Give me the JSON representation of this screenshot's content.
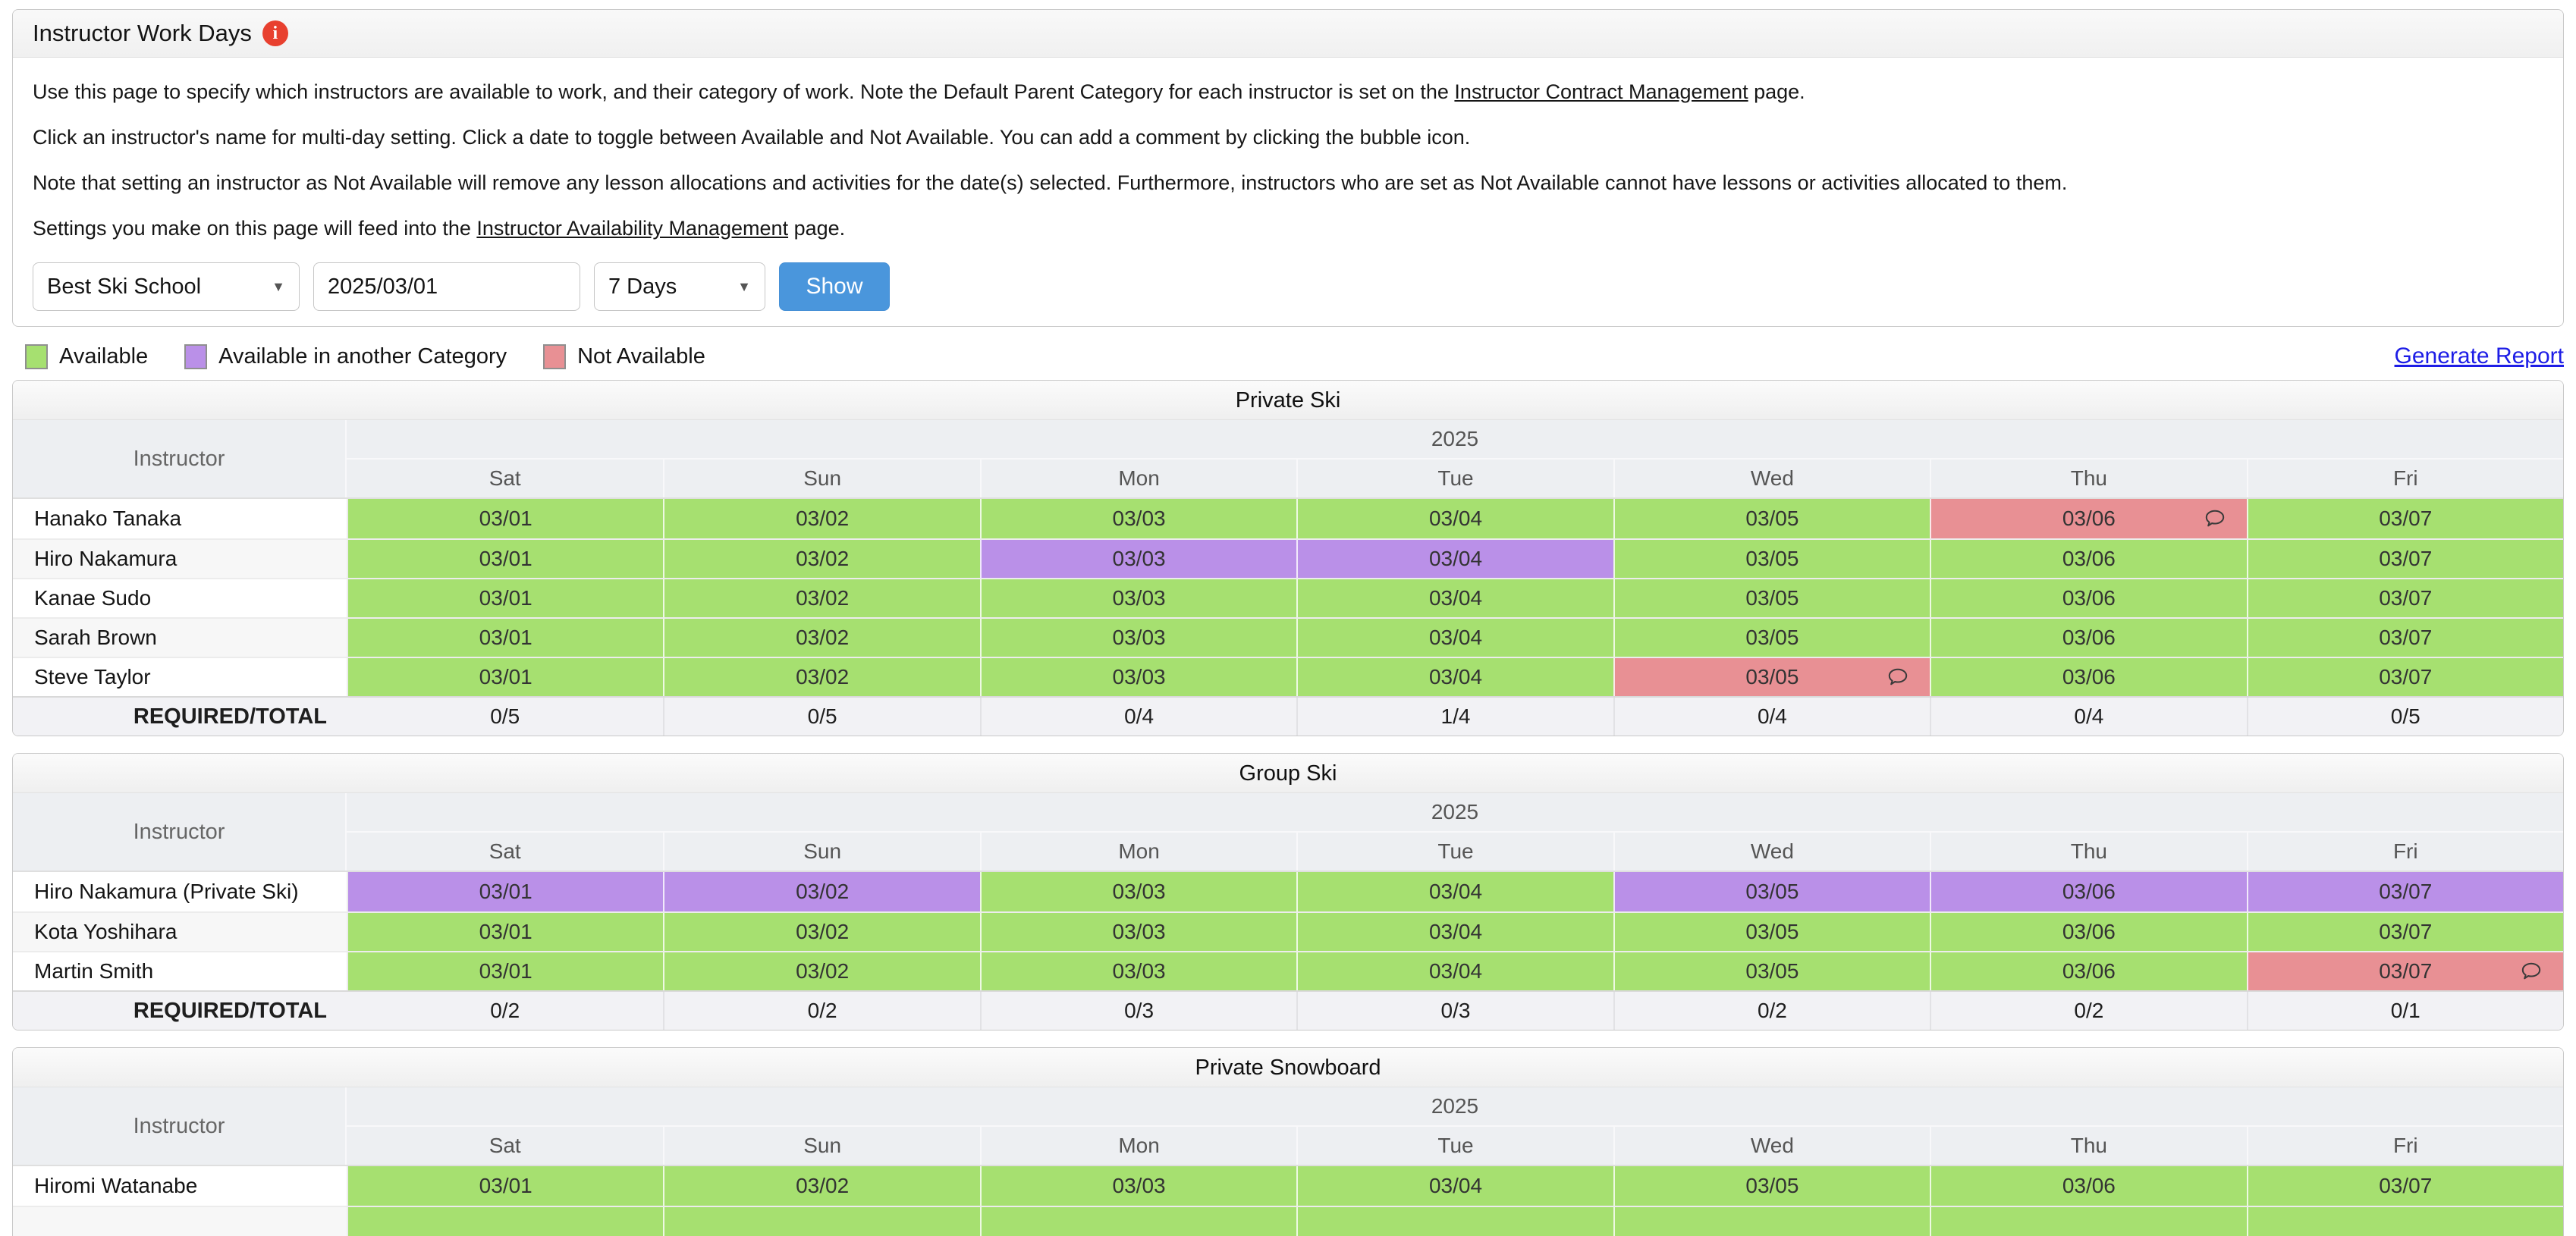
{
  "page": {
    "title": "Instructor Work Days"
  },
  "intro": {
    "p1_before": "Use this page to specify which instructors are available to work, and their category of work. Note the Default Parent Category for each instructor is set on the ",
    "p1_link": "Instructor Contract Management",
    "p1_after": " page.",
    "p2": "Click an instructor's name for multi-day setting. Click a date to toggle between Available and Not Available. You can add a comment by clicking the bubble icon.",
    "p3": "Note that setting an instructor as Not Available will remove any lesson allocations and activities for the date(s) selected. Furthermore, instructors who are set as Not Available cannot have lessons or activities allocated to them.",
    "p4_before": "Settings you make on this page will feed into the ",
    "p4_link": "Instructor Availability Management",
    "p4_after": " page."
  },
  "controls": {
    "school_select": "Best Ski School",
    "date_value": "2025/03/01",
    "days_select": "7 Days",
    "show_button": "Show"
  },
  "legend": {
    "items": [
      {
        "label": "Available",
        "status": "available"
      },
      {
        "label": "Available in another Category",
        "status": "another_category"
      },
      {
        "label": "Not Available",
        "status": "not_available"
      }
    ]
  },
  "generate_report": "Generate Report",
  "colors": {
    "available": "#a6e070",
    "another_category": "#ba90e8",
    "not_available": "#e89094",
    "show_button": "#4a96dc",
    "report_link": "#1d1de6",
    "info_icon": "#e8402f"
  },
  "table_common": {
    "instructor_header": "Instructor",
    "year": "2025",
    "day_headers": [
      "Sat",
      "Sun",
      "Mon",
      "Tue",
      "Wed",
      "Thu",
      "Fri"
    ],
    "dates": [
      "03/01",
      "03/02",
      "03/03",
      "03/04",
      "03/05",
      "03/06",
      "03/07"
    ],
    "required_label": "REQUIRED/TOTAL"
  },
  "tables": [
    {
      "title": "Private Ski",
      "rows": [
        {
          "name": "Hanako Tanaka",
          "cells": [
            {
              "status": "available"
            },
            {
              "status": "available"
            },
            {
              "status": "available"
            },
            {
              "status": "available"
            },
            {
              "status": "available"
            },
            {
              "status": "not_available",
              "comment": true
            },
            {
              "status": "available"
            }
          ]
        },
        {
          "name": "Hiro Nakamura",
          "cells": [
            {
              "status": "available"
            },
            {
              "status": "available"
            },
            {
              "status": "another_category"
            },
            {
              "status": "another_category"
            },
            {
              "status": "available"
            },
            {
              "status": "available"
            },
            {
              "status": "available"
            }
          ]
        },
        {
          "name": "Kanae Sudo",
          "cells": [
            {
              "status": "available"
            },
            {
              "status": "available"
            },
            {
              "status": "available"
            },
            {
              "status": "available"
            },
            {
              "status": "available"
            },
            {
              "status": "available"
            },
            {
              "status": "available"
            }
          ]
        },
        {
          "name": "Sarah Brown",
          "cells": [
            {
              "status": "available"
            },
            {
              "status": "available"
            },
            {
              "status": "available"
            },
            {
              "status": "available"
            },
            {
              "status": "available"
            },
            {
              "status": "available"
            },
            {
              "status": "available"
            }
          ]
        },
        {
          "name": "Steve Taylor",
          "cells": [
            {
              "status": "available"
            },
            {
              "status": "available"
            },
            {
              "status": "available"
            },
            {
              "status": "available"
            },
            {
              "status": "not_available",
              "comment": true
            },
            {
              "status": "available"
            },
            {
              "status": "available"
            }
          ]
        }
      ],
      "required": [
        "0/5",
        "0/5",
        "0/4",
        "1/4",
        "0/4",
        "0/4",
        "0/5"
      ]
    },
    {
      "title": "Group Ski",
      "rows": [
        {
          "name": "Hiro Nakamura (Private Ski)",
          "cells": [
            {
              "status": "another_category"
            },
            {
              "status": "another_category"
            },
            {
              "status": "available"
            },
            {
              "status": "available"
            },
            {
              "status": "another_category"
            },
            {
              "status": "another_category"
            },
            {
              "status": "another_category"
            }
          ]
        },
        {
          "name": "Kota Yoshihara",
          "cells": [
            {
              "status": "available"
            },
            {
              "status": "available"
            },
            {
              "status": "available"
            },
            {
              "status": "available"
            },
            {
              "status": "available"
            },
            {
              "status": "available"
            },
            {
              "status": "available"
            }
          ]
        },
        {
          "name": "Martin Smith",
          "cells": [
            {
              "status": "available"
            },
            {
              "status": "available"
            },
            {
              "status": "available"
            },
            {
              "status": "available"
            },
            {
              "status": "available"
            },
            {
              "status": "available"
            },
            {
              "status": "not_available",
              "comment": true
            }
          ]
        }
      ],
      "required": [
        "0/2",
        "0/2",
        "0/3",
        "0/3",
        "0/2",
        "0/2",
        "0/1"
      ]
    },
    {
      "title": "Private Snowboard",
      "rows": [
        {
          "name": "Hiromi Watanabe",
          "cells": [
            {
              "status": "available"
            },
            {
              "status": "available"
            },
            {
              "status": "available"
            },
            {
              "status": "available"
            },
            {
              "status": "available"
            },
            {
              "status": "available"
            },
            {
              "status": "available"
            }
          ]
        },
        {
          "name": "",
          "partial": true,
          "cells": [
            {
              "status": "available"
            },
            {
              "status": "available"
            },
            {
              "status": "available"
            },
            {
              "status": "available"
            },
            {
              "status": "available"
            },
            {
              "status": "available"
            },
            {
              "status": "available"
            }
          ]
        }
      ],
      "required": null
    }
  ]
}
